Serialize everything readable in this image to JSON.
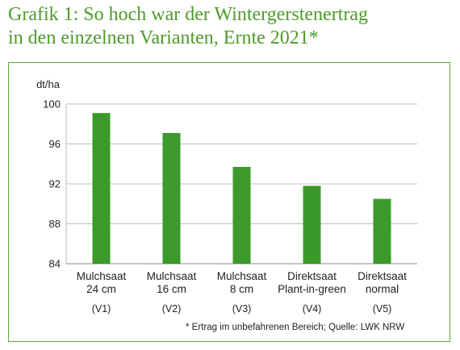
{
  "title_line1": "Grafik 1: So hoch war der Wintergerstenertrag",
  "title_line2": "in den einzelnen Varianten, Ernte 2021*",
  "footnote": "* Ertrag im unbefahrenen Bereich; Quelle: LWK NRW",
  "colors": {
    "bar": "#3b9a2a",
    "accent": "#4e9a2a",
    "frame": "#58a83a"
  },
  "chart_data": {
    "type": "bar",
    "title": "Grafik 1: So hoch war der Wintergerstenertrag in den einzelnen Varianten, Ernte 2021*",
    "ylabel": "dt/ha",
    "xlabel": "",
    "ylim": [
      84,
      100
    ],
    "yticks": [
      84,
      88,
      92,
      96,
      100
    ],
    "grid": true,
    "categories": [
      {
        "lines": [
          "Mulchsaat",
          "24 cm"
        ],
        "code": "(V1)"
      },
      {
        "lines": [
          "Mulchsaat",
          "16 cm"
        ],
        "code": "(V2)"
      },
      {
        "lines": [
          "Mulchsaat",
          "8 cm"
        ],
        "code": "(V3)"
      },
      {
        "lines": [
          "Direktsaat",
          "Plant-in-green"
        ],
        "code": "(V4)"
      },
      {
        "lines": [
          "Direktsaat",
          "normal"
        ],
        "code": "(V5)"
      }
    ],
    "values": [
      99.1,
      97.1,
      93.7,
      91.8,
      90.5
    ]
  }
}
